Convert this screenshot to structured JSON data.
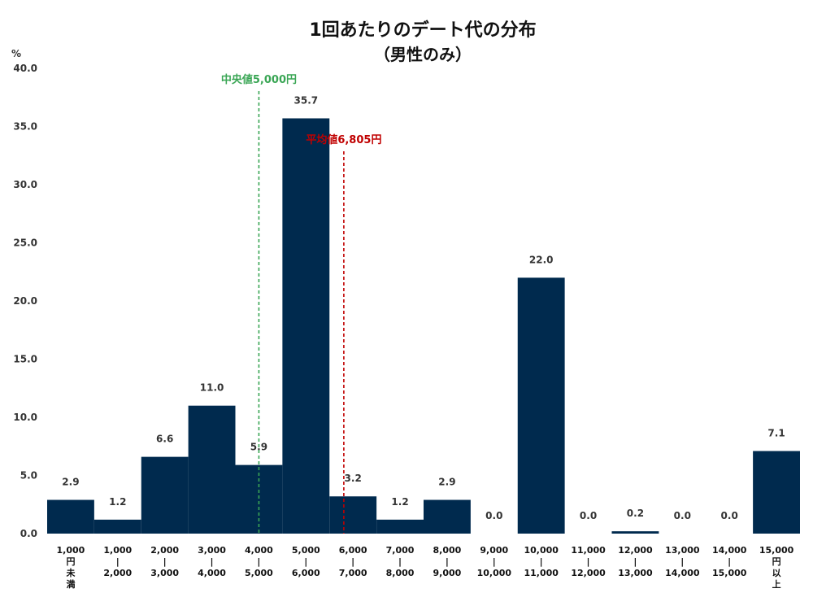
{
  "chart_data": {
    "type": "bar",
    "title": "1回あたりのデート代の分布",
    "subtitle": "（男性のみ）",
    "ylabel": "%",
    "xlabel": "",
    "ylim": [
      0,
      40
    ],
    "yticks": [
      "0.0",
      "5.0",
      "10.0",
      "15.0",
      "20.0",
      "25.0",
      "30.0",
      "35.0",
      "40.0"
    ],
    "categories": [
      [
        "1,000",
        "円",
        "未",
        "満"
      ],
      [
        "1,000",
        "|",
        "2,000"
      ],
      [
        "2,000",
        "|",
        "3,000"
      ],
      [
        "3,000",
        "|",
        "4,000"
      ],
      [
        "4,000",
        "|",
        "5,000"
      ],
      [
        "5,000",
        "|",
        "6,000"
      ],
      [
        "6,000",
        "|",
        "7,000"
      ],
      [
        "7,000",
        "|",
        "8,000"
      ],
      [
        "8,000",
        "|",
        "9,000"
      ],
      [
        "9,000",
        "|",
        "10,000"
      ],
      [
        "10,000",
        "|",
        "11,000"
      ],
      [
        "11,000",
        "|",
        "12,000"
      ],
      [
        "12,000",
        "|",
        "13,000"
      ],
      [
        "13,000",
        "|",
        "14,000"
      ],
      [
        "14,000",
        "|",
        "15,000"
      ],
      [
        "15,000",
        "円",
        "以",
        "上"
      ]
    ],
    "values": [
      2.9,
      1.2,
      6.6,
      11.0,
      5.9,
      35.7,
      3.2,
      1.2,
      2.9,
      0.0,
      22.0,
      0.0,
      0.2,
      0.0,
      0.0,
      7.1
    ],
    "value_labels": [
      "2.9",
      "1.2",
      "6.6",
      "11.0",
      "5.9",
      "35.7",
      "3.2",
      "1.2",
      "2.9",
      "0.0",
      "22.0",
      "0.0",
      "0.2",
      "0.0",
      "0.0",
      "7.1"
    ],
    "bar_color": "#002a4e",
    "grid": false,
    "annotations": [
      {
        "label": "中央値5,000円",
        "value": 5000,
        "color": "#3aa655"
      },
      {
        "label": "平均値6,805円",
        "value": 6805,
        "color": "#c00000"
      }
    ]
  }
}
